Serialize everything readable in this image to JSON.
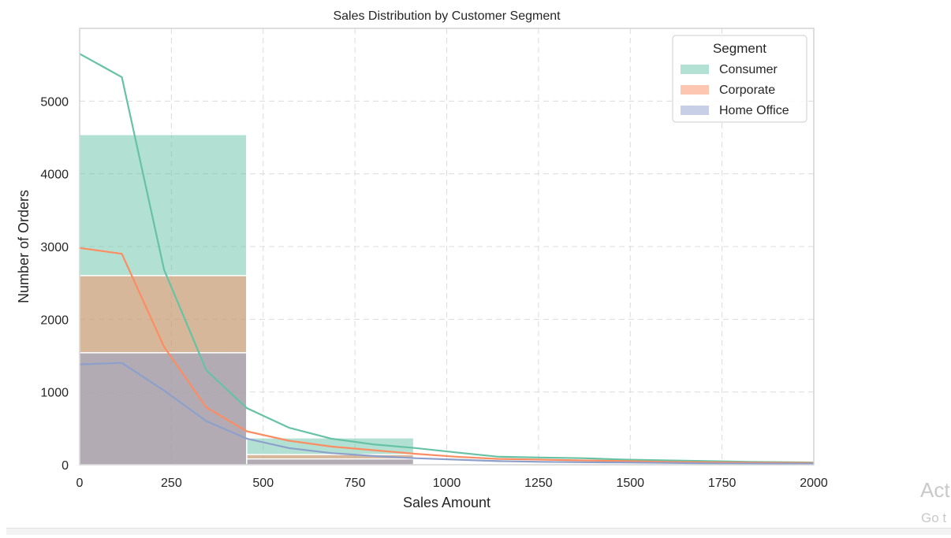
{
  "chart_data": {
    "type": "histogram",
    "title": "Sales Distribution by Customer Segment",
    "xlabel": "Sales Amount",
    "ylabel": "Number of Orders",
    "xlim": [
      0,
      2000
    ],
    "ylim": [
      0,
      6000
    ],
    "xticks": [
      0,
      250,
      500,
      750,
      1000,
      1250,
      1500,
      1750,
      2000
    ],
    "yticks": [
      0,
      1000,
      2000,
      3000,
      4000,
      5000
    ],
    "grid": true,
    "legend": {
      "title": "Segment",
      "position": "top-right"
    },
    "bins": [
      [
        0,
        455
      ],
      [
        455,
        910
      ],
      [
        910,
        2000
      ]
    ],
    "series": [
      {
        "name": "Consumer",
        "color": "#66c2a5",
        "bar_values": [
          4540,
          370,
          30
        ],
        "kde_x": [
          0,
          115,
          230,
          345,
          455,
          570,
          685,
          800,
          915,
          1025,
          1140,
          1255,
          1370,
          1485,
          1600,
          1710,
          1825,
          2000
        ],
        "kde_y": [
          5650,
          5330,
          2680,
          1300,
          780,
          510,
          360,
          280,
          230,
          170,
          110,
          100,
          90,
          70,
          60,
          50,
          40,
          30
        ]
      },
      {
        "name": "Corporate",
        "color": "#fc8d62",
        "bar_values": [
          2600,
          140,
          20
        ],
        "kde_x": [
          0,
          115,
          230,
          345,
          455,
          570,
          685,
          800,
          915,
          1025,
          1140,
          1255,
          1370,
          1485,
          1600,
          1710,
          1825,
          2000
        ],
        "kde_y": [
          2980,
          2900,
          1620,
          790,
          460,
          330,
          250,
          200,
          150,
          110,
          80,
          70,
          60,
          50,
          40,
          35,
          30,
          25
        ]
      },
      {
        "name": "Home Office",
        "color": "#8da0cb",
        "bar_values": [
          1540,
          80,
          10
        ],
        "kde_x": [
          0,
          115,
          230,
          345,
          455,
          570,
          685,
          800,
          915,
          1025,
          1140,
          1255,
          1370,
          1485,
          1600,
          1710,
          1825,
          2000
        ],
        "kde_y": [
          1380,
          1400,
          1020,
          600,
          360,
          230,
          160,
          120,
          90,
          70,
          50,
          40,
          35,
          30,
          25,
          20,
          18,
          15
        ]
      }
    ]
  },
  "overlay": {
    "activation_title": "Act",
    "activation_sub": "Go t"
  }
}
